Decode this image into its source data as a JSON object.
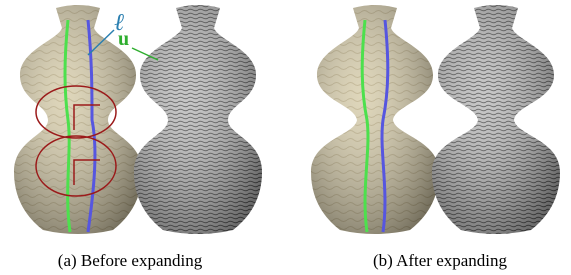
{
  "labels": {
    "ell": "ℓ",
    "u": "u"
  },
  "captions": [
    "(a) Before expanding",
    "(b) After expanding"
  ]
}
